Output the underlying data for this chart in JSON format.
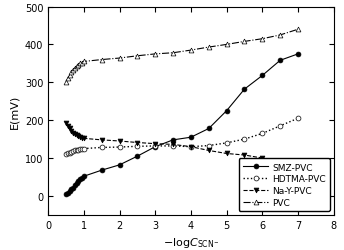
{
  "title": "",
  "xlabel": "-logC_{SCN^-}",
  "ylabel": "E(mV)",
  "xlim": [
    0,
    8
  ],
  "ylim": [
    -50,
    500
  ],
  "xticks": [
    0,
    1,
    2,
    3,
    4,
    5,
    6,
    7,
    8
  ],
  "yticks": [
    0,
    100,
    200,
    300,
    400,
    500
  ],
  "SMZ_PVC_x": [
    0.5,
    0.55,
    0.6,
    0.65,
    0.7,
    0.75,
    0.8,
    0.85,
    0.9,
    0.95,
    1.0,
    1.5,
    2.0,
    2.5,
    3.0,
    3.5,
    4.0,
    4.5,
    5.0,
    5.5,
    6.0,
    6.5,
    7.0
  ],
  "SMZ_PVC_y": [
    5,
    8,
    12,
    17,
    22,
    28,
    34,
    40,
    45,
    48,
    52,
    68,
    82,
    105,
    130,
    148,
    155,
    178,
    225,
    282,
    318,
    358,
    375
  ],
  "HDTMA_PVC_x": [
    0.5,
    0.55,
    0.6,
    0.65,
    0.7,
    0.75,
    0.8,
    0.85,
    0.9,
    0.95,
    1.0,
    1.5,
    2.0,
    2.5,
    3.0,
    3.5,
    4.0,
    4.5,
    5.0,
    5.5,
    6.0,
    6.5,
    7.0
  ],
  "HDTMA_PVC_y": [
    110,
    112,
    114,
    116,
    118,
    120,
    121,
    122,
    123,
    124,
    125,
    128,
    129,
    131,
    132,
    132,
    130,
    133,
    140,
    150,
    165,
    185,
    205
  ],
  "NaY_PVC_x": [
    0.5,
    0.55,
    0.6,
    0.65,
    0.7,
    0.75,
    0.8,
    0.85,
    0.9,
    0.95,
    1.0,
    1.5,
    2.0,
    2.5,
    3.0,
    3.5,
    4.0,
    4.5,
    5.0,
    5.5,
    6.0,
    6.5,
    7.0
  ],
  "NaY_PVC_y": [
    192,
    185,
    178,
    172,
    167,
    163,
    160,
    158,
    156,
    154,
    152,
    148,
    145,
    141,
    138,
    136,
    130,
    120,
    112,
    108,
    100,
    75,
    58
  ],
  "PVC_x": [
    0.5,
    0.55,
    0.6,
    0.65,
    0.7,
    0.75,
    0.8,
    0.85,
    0.9,
    0.95,
    1.0,
    1.5,
    2.0,
    2.5,
    3.0,
    3.5,
    4.0,
    4.5,
    5.0,
    5.5,
    6.0,
    6.5,
    7.0
  ],
  "PVC_y": [
    302,
    310,
    318,
    326,
    333,
    338,
    342,
    346,
    350,
    352,
    355,
    360,
    364,
    370,
    375,
    378,
    385,
    393,
    400,
    408,
    415,
    425,
    440
  ],
  "smz_color": "#000000",
  "hdtma_color": "#000000",
  "nay_color": "#000000",
  "pvc_color": "#000000",
  "legend_labels": [
    "SMZ-PVC",
    "HDTMA-PVC",
    "Na-Y-PVC",
    "PVC"
  ],
  "legend_loc": "lower right",
  "figsize": [
    3.44,
    2.51
  ],
  "dpi": 100
}
